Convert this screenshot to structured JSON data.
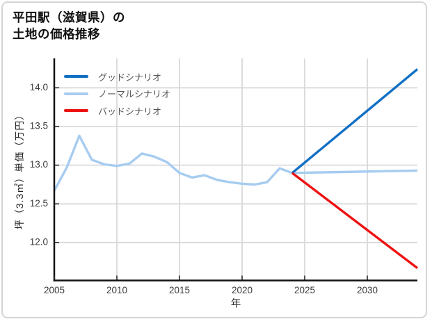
{
  "header": {
    "title_line1": "平田駅（滋賀県）の",
    "title_line2": "土地の価格推移"
  },
  "legend": {
    "items": [
      {
        "label": "グッドシナリオ",
        "color": "#1170c4"
      },
      {
        "label": "ノーマルシナリオ",
        "color": "#a6ccf0"
      },
      {
        "label": "バッドシナリオ",
        "color": "#ee1111"
      }
    ]
  },
  "chart_data": {
    "type": "line",
    "title": "平田駅（滋賀県）の土地の価格推移",
    "xlabel": "年",
    "ylabel": "坪（3.3㎡）単価（万円）",
    "xlim": [
      2005,
      2034
    ],
    "ylim": [
      11.51,
      14.38
    ],
    "xticks": [
      2005,
      2010,
      2015,
      2020,
      2025,
      2030
    ],
    "yticks": [
      12.0,
      12.5,
      13.0,
      13.5,
      14.0
    ],
    "grid": true,
    "legend_position": "upper-left",
    "colors": {
      "grid": "#d9d9d9",
      "spine": "#111111",
      "tick_label": "#3a3a3a"
    },
    "series": [
      {
        "name": "ノーマルシナリオ",
        "key": "normal",
        "color": "#a6ccf0",
        "x": [
          2005,
          2006,
          2007,
          2008,
          2009,
          2010,
          2011,
          2012,
          2013,
          2014,
          2015,
          2016,
          2017,
          2018,
          2019,
          2020,
          2021,
          2022,
          2023,
          2024,
          2034
        ],
        "y": [
          12.67,
          12.97,
          13.38,
          13.07,
          13.01,
          12.99,
          13.02,
          13.15,
          13.11,
          13.04,
          12.9,
          12.84,
          12.87,
          12.81,
          12.78,
          12.76,
          12.75,
          12.78,
          12.96,
          12.9,
          12.93
        ]
      },
      {
        "name": "グッドシナリオ",
        "key": "good",
        "color": "#1170c4",
        "x": [
          2024,
          2034
        ],
        "y": [
          12.9,
          14.24
        ]
      },
      {
        "name": "バッドシナリオ",
        "key": "bad",
        "color": "#ee1111",
        "x": [
          2024,
          2034
        ],
        "y": [
          12.9,
          11.67
        ]
      }
    ]
  }
}
